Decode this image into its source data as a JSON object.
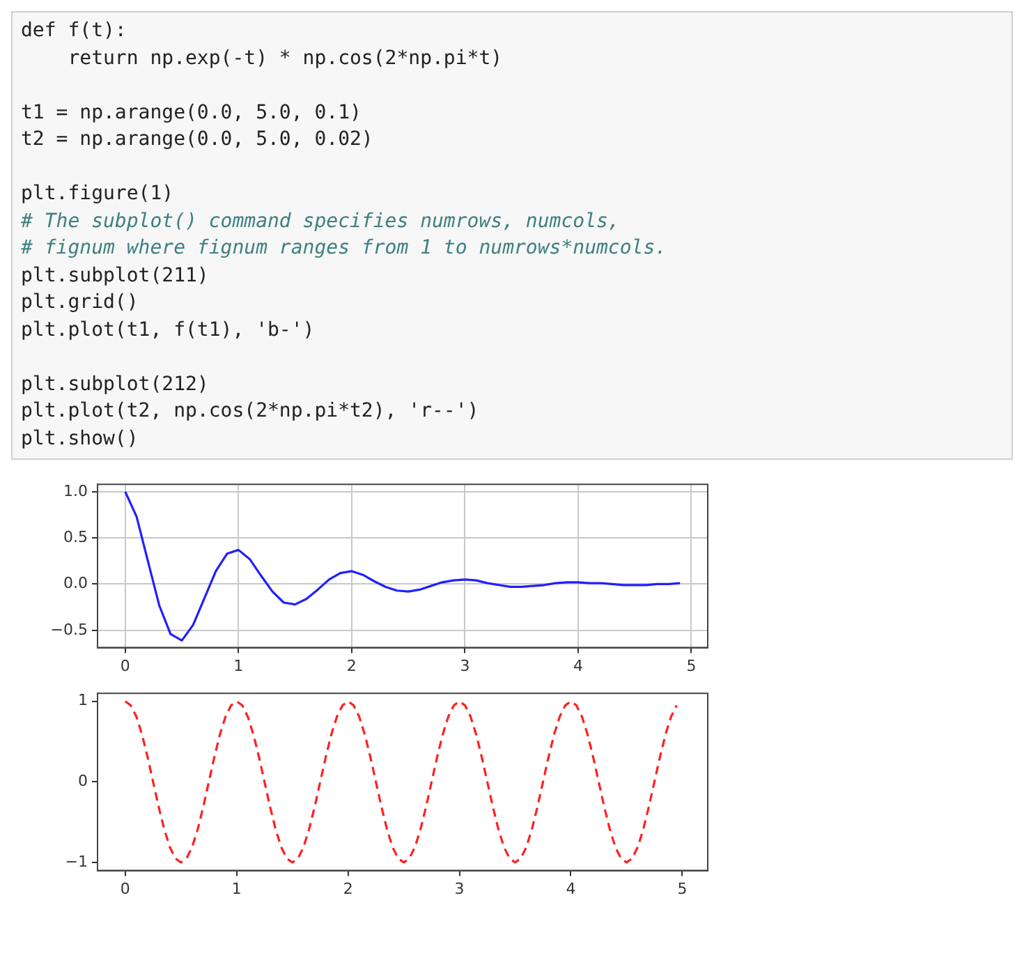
{
  "chart_data": [
    {
      "type": "line",
      "annotations": [
        "def f(t):\n    return np.exp(-t) * np.cos(2*np.pi*t)",
        "t1 = np.arange(0.0, 5.0, 0.1)\nt2 = np.arange(0.0, 5.0, 0.02)",
        "plt.figure(1)\n# The subplot() command specifies numrows, numcols,\n# fignum where fignum ranges from 1 to numrows*numcols.\nplt.subplot(211)\nplt.grid()\nplt.plot(t1, f(t1), 'b-')",
        "plt.subplot(212)\nplt.plot(t2, np.cos(2*np.pi*t2), 'r--')\nplt.show()"
      ],
      "x": [
        0,
        0.1,
        0.2,
        0.3,
        0.4,
        0.5,
        0.6,
        0.7,
        0.8,
        0.9,
        1.0,
        1.1,
        1.2,
        1.3,
        1.4,
        1.5,
        1.6,
        1.7,
        1.8,
        1.9,
        2.0,
        2.1,
        2.2,
        2.3,
        2.4,
        2.5,
        2.6,
        2.7,
        2.8,
        2.9,
        3.0,
        3.1,
        3.2,
        3.3,
        3.4,
        3.5,
        3.6,
        3.7,
        3.8,
        3.9,
        4.0,
        4.1,
        4.2,
        4.3,
        4.4,
        4.5,
        4.6,
        4.7,
        4.8,
        4.9
      ],
      "series": [
        {
          "color": "#2020ff",
          "values": [
            1,
            0.73,
            0.25,
            -0.23,
            -0.54,
            -0.61,
            -0.44,
            -0.15,
            0.14,
            0.33,
            0.37,
            0.27,
            0.09,
            -0.08,
            -0.2,
            -0.22,
            -0.16,
            -0.06,
            0.05,
            0.12,
            0.14,
            0.1,
            0.03,
            -0.03,
            -0.07,
            -0.08,
            -0.06,
            -0.02,
            0.02,
            0.04,
            0.05,
            0.04,
            0.01,
            -0.01,
            -0.03,
            -0.03,
            -0.02,
            -0.01,
            0.01,
            0.02,
            0.02,
            0.01,
            0.01,
            0,
            -0.01,
            -0.01,
            -0.01,
            0,
            0,
            0.01
          ]
        }
      ],
      "xlim": [
        -0.245,
        5.145
      ],
      "xticks": [
        0,
        1,
        2,
        3,
        4,
        5
      ],
      "ylim": [
        -0.687,
        1.08
      ],
      "yticks": [
        {
          "value": -0.5,
          "label": "−0.5"
        },
        {
          "value": 0,
          "label": "0.0"
        },
        {
          "value": 0.5,
          "label": "0.5"
        },
        {
          "value": 1,
          "label": "1.0"
        }
      ],
      "grid": true,
      "line_style": "solid",
      "marker": "none"
    },
    {
      "type": "line",
      "x": [
        0,
        0.05,
        0.1,
        0.15,
        0.2,
        0.25,
        0.3,
        0.35,
        0.4,
        0.45,
        0.5,
        0.55,
        0.6,
        0.65,
        0.7,
        0.75,
        0.8,
        0.85,
        0.9,
        0.95,
        1,
        1.05,
        1.1,
        1.15,
        1.2,
        1.25,
        1.3,
        1.35,
        1.4,
        1.45,
        1.5,
        1.55,
        1.6,
        1.65,
        1.7,
        1.75,
        1.8,
        1.85,
        1.9,
        1.95,
        2,
        2.05,
        2.1,
        2.15,
        2.2,
        2.25,
        2.3,
        2.35,
        2.4,
        2.45,
        2.5,
        2.55,
        2.6,
        2.65,
        2.7,
        2.75,
        2.8,
        2.85,
        2.9,
        2.95,
        3,
        3.05,
        3.1,
        3.15,
        3.2,
        3.25,
        3.3,
        3.35,
        3.4,
        3.45,
        3.5,
        3.55,
        3.6,
        3.65,
        3.7,
        3.75,
        3.8,
        3.85,
        3.9,
        3.95,
        4,
        4.05,
        4.1,
        4.15,
        4.2,
        4.25,
        4.3,
        4.35,
        4.4,
        4.45,
        4.5,
        4.55,
        4.6,
        4.65,
        4.7,
        4.75,
        4.8,
        4.85,
        4.9,
        4.95
      ],
      "series": [
        {
          "color": "#ff2020",
          "values": [
            1,
            0.95,
            0.81,
            0.59,
            0.31,
            0,
            -0.31,
            -0.59,
            -0.81,
            -0.95,
            -1,
            -0.95,
            -0.81,
            -0.59,
            -0.31,
            0,
            0.31,
            0.59,
            0.81,
            0.95,
            1,
            0.95,
            0.81,
            0.59,
            0.31,
            0,
            -0.31,
            -0.59,
            -0.81,
            -0.95,
            -1,
            -0.95,
            -0.81,
            -0.59,
            -0.31,
            0,
            0.31,
            0.59,
            0.81,
            0.95,
            1,
            0.95,
            0.81,
            0.59,
            0.31,
            0,
            -0.31,
            -0.59,
            -0.81,
            -0.95,
            -1,
            -0.95,
            -0.81,
            -0.59,
            -0.31,
            0,
            0.31,
            0.59,
            0.81,
            0.95,
            1,
            0.95,
            0.81,
            0.59,
            0.31,
            0,
            -0.31,
            -0.59,
            -0.81,
            -0.95,
            -1,
            -0.95,
            -0.81,
            -0.59,
            -0.31,
            0,
            0.31,
            0.59,
            0.81,
            0.95,
            1,
            0.95,
            0.81,
            0.59,
            0.31,
            0,
            -0.31,
            -0.59,
            -0.81,
            -0.95,
            -1,
            -0.95,
            -0.81,
            -0.59,
            -0.31,
            0,
            0.31,
            0.59,
            0.81,
            0.95
          ]
        }
      ],
      "xlim": [
        -0.249,
        5.229
      ],
      "xticks": [
        0,
        1,
        2,
        3,
        4,
        5
      ],
      "ylim": [
        -1.1,
        1.1
      ],
      "yticks": [
        {
          "value": -1,
          "label": "−1"
        },
        {
          "value": 0,
          "label": "0"
        },
        {
          "value": 1,
          "label": "1"
        }
      ],
      "line_style": "dashed",
      "marker": "none"
    }
  ]
}
